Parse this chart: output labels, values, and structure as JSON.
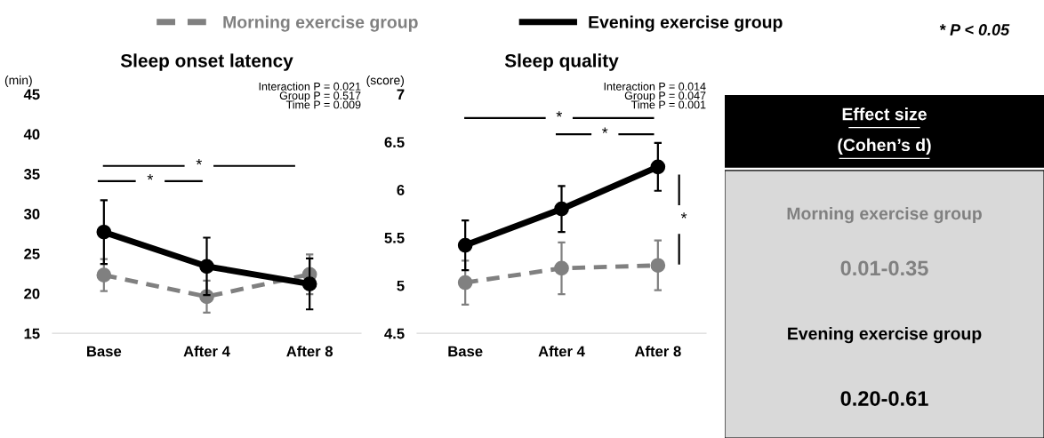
{
  "chart_data": [
    {
      "type": "line",
      "title": "Sleep onset latency",
      "ylabel": "(min)",
      "categories": [
        "Base",
        "After 4",
        "After 8"
      ],
      "ylim": [
        15,
        45
      ],
      "yticks": [
        15,
        20,
        25,
        30,
        35,
        40,
        45
      ],
      "grid": false,
      "legend": "top",
      "marker": "circle",
      "series": [
        {
          "name": "Morning exercise group",
          "color": "#808080",
          "line_style": "dashed",
          "values": [
            22.3,
            19.6,
            22.4
          ],
          "errors": [
            2.0,
            2.0,
            2.5
          ]
        },
        {
          "name": "Evening exercise group",
          "color": "#000000",
          "line_style": "solid",
          "values": [
            27.7,
            23.4,
            21.2
          ],
          "errors": [
            4.0,
            3.6,
            3.2
          ]
        }
      ],
      "annotations": [
        "* P < 0.05",
        "Interaction P = 0.021\nGroup P = 0.517\nTime P = 0.009",
        "*",
        "*"
      ]
    },
    {
      "type": "line",
      "title": "Sleep quality",
      "ylabel": "(score)",
      "categories": [
        "Base",
        "After 4",
        "After 8"
      ],
      "ylim": [
        4.5,
        7
      ],
      "yticks": [
        4.5,
        5,
        5.5,
        6,
        6.5,
        7
      ],
      "grid": false,
      "marker": "circle",
      "series": [
        {
          "color": "#808080",
          "line_style": "dashed",
          "values": [
            5.03,
            5.18,
            5.21
          ],
          "errors": [
            0.23,
            0.27,
            0.26
          ]
        },
        {
          "color": "#000000",
          "line_style": "solid",
          "values": [
            5.42,
            5.8,
            6.24
          ],
          "errors": [
            0.26,
            0.24,
            0.25
          ]
        }
      ],
      "annotations": [
        "Interaction P = 0.014\nGroup P = 0.047\nTime P = 0.001",
        "*",
        "*",
        "*"
      ]
    },
    {
      "type": "other",
      "title": "Effect size",
      "subtitle": "(Cohen’s d)",
      "annotations": [
        "Morning exercise group",
        "0.01-0.35",
        "Evening exercise group",
        "0.20-0.61"
      ]
    }
  ]
}
